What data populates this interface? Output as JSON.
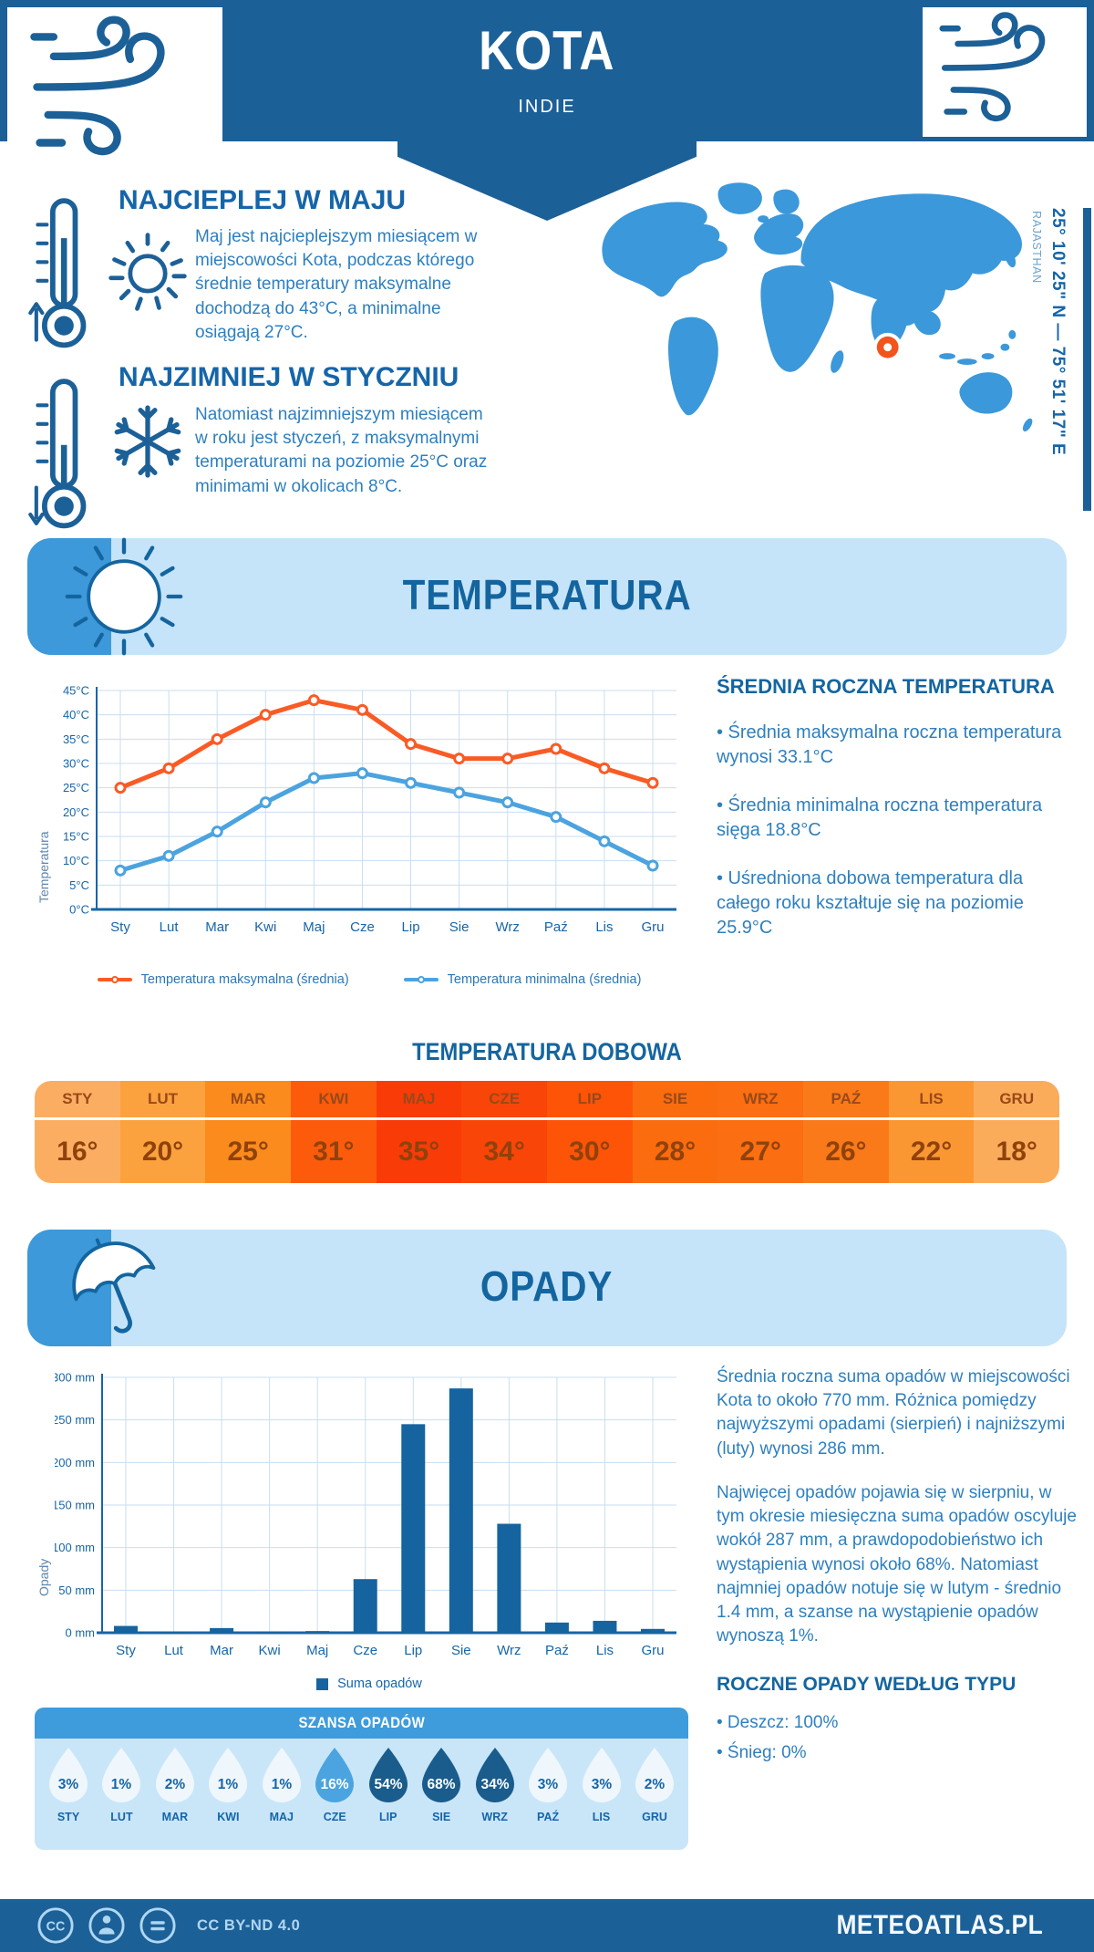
{
  "header": {
    "title": "KOTA",
    "subtitle": "INDIE"
  },
  "intro": {
    "warm": {
      "title": "NAJCIEPLEJ W MAJU",
      "text": "Maj jest najcieplejszym miesiącem w miejscowości Kota, podczas którego średnie temperatury maksymalne dochodzą do 43°C, a minimalne osiągają 27°C."
    },
    "cold": {
      "title": "NAJZIMNIEJ W STYCZNIU",
      "text": "Natomiast najzimniejszym miesiącem w roku jest styczeń, z maksymalnymi temperaturami na poziomie 25°C oraz minimami w okolicach 8°C."
    },
    "map": {
      "coordinates": "25° 10' 25\" N — 75° 51' 17\" E",
      "region": "RAJASTHAN",
      "land_color": "#3B98DA",
      "marker_color": "#F2541D"
    }
  },
  "temperature_section": {
    "title": "TEMPERATURA",
    "stats_title": "ŚREDNIA ROCZNA TEMPERATURA",
    "stats": [
      "• Średnia maksymalna roczna temperatura wynosi 33.1°C",
      "• Średnia minimalna roczna temperatura sięga 18.8°C",
      "• Uśredniona dobowa temperatura dla całego roku kształtuje się na poziomie 25.9°C"
    ],
    "daily_title": "TEMPERATURA DOBOWA"
  },
  "precipitation_section": {
    "title": "OPADY",
    "text1": "Średnia roczna suma opadów w miejscowości Kota to około 770 mm. Różnica pomiędzy najwyższymi opadami (sierpień) i najniższymi (luty) wynosi 286 mm.",
    "text2": "Najwięcej opadów pojawia się w sierpniu, w tym okresie miesięczna suma opadów oscyluje wokół 287 mm, a prawdopodobieństwo ich wystąpienia wynosi około 68%. Natomiast najmniej opadów notuje się w lutym - średnio 1.4 mm, a szanse na wystąpienie opadów wynoszą 1%.",
    "type_title": "ROCZNE OPADY WEDŁUG TYPU",
    "types": [
      "• Deszcz: 100%",
      "• Śnieg: 0%"
    ],
    "chance_title": "SZANSA OPADÓW"
  },
  "footer": {
    "license": "CC BY-ND 4.0",
    "site": "METEOATLAS.PL"
  },
  "icons": {
    "header": "wind-icon",
    "warm": [
      "thermometer-up-icon",
      "sun-icon"
    ],
    "cold": [
      "thermometer-down-icon",
      "snowflake-icon"
    ],
    "temperature_banner": "sun-icon",
    "precipitation_banner": "umbrella-icon",
    "chance": "raindrop-icon",
    "footer": [
      "cc-icon",
      "cc-person-icon",
      "cc-nd-icon"
    ]
  },
  "chart_data": [
    {
      "type": "line",
      "categories": [
        "Sty",
        "Lut",
        "Mar",
        "Kwi",
        "Maj",
        "Cze",
        "Lip",
        "Sie",
        "Wrz",
        "Paź",
        "Lis",
        "Gru"
      ],
      "series": [
        {
          "name": "Temperatura maksymalna (średnia)",
          "color": "#F95B25",
          "values": [
            25,
            29,
            35,
            40,
            43,
            41,
            34,
            31,
            31,
            33,
            29,
            26
          ]
        },
        {
          "name": "Temperatura minimalna (średnia)",
          "color": "#4BA3DF",
          "values": [
            8,
            11,
            16,
            22,
            27,
            28,
            26,
            24,
            22,
            19,
            14,
            9
          ]
        }
      ],
      "ylabel": "Temperatura",
      "ylim": [
        0,
        45
      ],
      "ytick_step": 5,
      "ytick_suffix": "°C",
      "grid": true,
      "legend_position": "bottom"
    },
    {
      "type": "bar",
      "categories": [
        "Sty",
        "Lut",
        "Mar",
        "Kwi",
        "Maj",
        "Cze",
        "Lip",
        "Sie",
        "Wrz",
        "Paź",
        "Lis",
        "Gru"
      ],
      "series": [
        {
          "name": "Suma opadów",
          "color": "#1564A0",
          "values": [
            8,
            1.4,
            5.5,
            1.5,
            2,
            63,
            245,
            287,
            128,
            12,
            14,
            4.5
          ]
        }
      ],
      "ylabel": "Opady",
      "ylim": [
        0,
        300
      ],
      "ytick_step": 50,
      "ytick_suffix": " mm",
      "grid": true,
      "legend_position": "bottom"
    }
  ],
  "daily_table": {
    "months": [
      {
        "label": "STY",
        "value": "16°",
        "bg": "#FBAE62"
      },
      {
        "label": "LUT",
        "value": "20°",
        "bg": "#FBA23E"
      },
      {
        "label": "MAR",
        "value": "25°",
        "bg": "#FB8B1D"
      },
      {
        "label": "KWI",
        "value": "31°",
        "bg": "#FC5B0B"
      },
      {
        "label": "MAJ",
        "value": "35°",
        "bg": "#F93B08"
      },
      {
        "label": "CZE",
        "value": "34°",
        "bg": "#FA4508"
      },
      {
        "label": "LIP",
        "value": "30°",
        "bg": "#FD5407"
      },
      {
        "label": "SIE",
        "value": "28°",
        "bg": "#FB6C0E"
      },
      {
        "label": "WRZ",
        "value": "27°",
        "bg": "#FB6E11"
      },
      {
        "label": "PAŹ",
        "value": "26°",
        "bg": "#FA7A19"
      },
      {
        "label": "LIS",
        "value": "22°",
        "bg": "#FB9733"
      },
      {
        "label": "GRU",
        "value": "18°",
        "bg": "#FBAC5B"
      }
    ]
  },
  "precip_chance": {
    "tones": {
      "light": {
        "fill": "#EFF7FD",
        "text": "#1565A9"
      },
      "mid": {
        "fill": "#4BA4DF",
        "text": "#FFFFFF"
      },
      "dark": {
        "fill": "#1A5C8C",
        "text": "#FFFFFF"
      }
    },
    "months": [
      {
        "label": "STY",
        "value": "3%",
        "tone": "light"
      },
      {
        "label": "LUT",
        "value": "1%",
        "tone": "light"
      },
      {
        "label": "MAR",
        "value": "2%",
        "tone": "light"
      },
      {
        "label": "KWI",
        "value": "1%",
        "tone": "light"
      },
      {
        "label": "MAJ",
        "value": "1%",
        "tone": "light"
      },
      {
        "label": "CZE",
        "value": "16%",
        "tone": "mid"
      },
      {
        "label": "LIP",
        "value": "54%",
        "tone": "dark"
      },
      {
        "label": "SIE",
        "value": "68%",
        "tone": "dark"
      },
      {
        "label": "WRZ",
        "value": "34%",
        "tone": "dark"
      },
      {
        "label": "PAŹ",
        "value": "3%",
        "tone": "light"
      },
      {
        "label": "LIS",
        "value": "3%",
        "tone": "light"
      },
      {
        "label": "GRU",
        "value": "2%",
        "tone": "light"
      }
    ]
  }
}
